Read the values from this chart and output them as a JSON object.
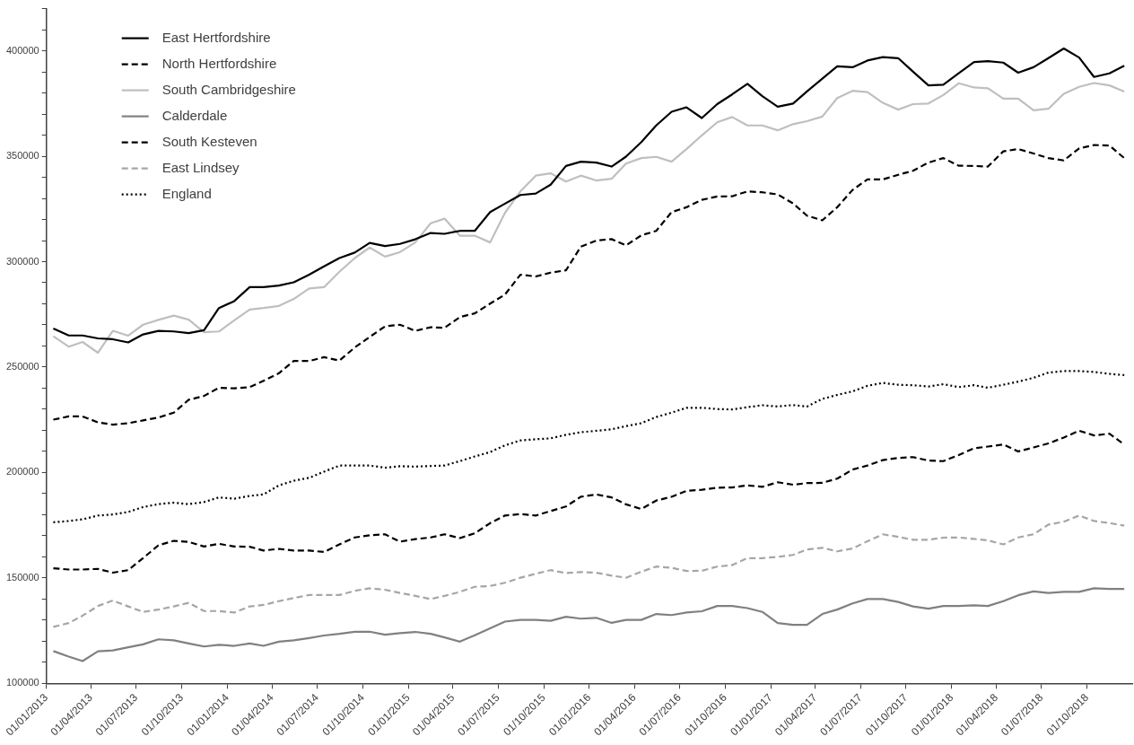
{
  "chart_data": {
    "type": "line",
    "legend": "top left",
    "grid": false,
    "marker": "none",
    "x": [
      "2013-01-15",
      "2013-02-15",
      "2013-03-15",
      "2013-04-15",
      "2013-05-15",
      "2013-06-15",
      "2013-07-15",
      "2013-08-15",
      "2013-09-15",
      "2013-10-15",
      "2013-11-15",
      "2013-12-15",
      "2014-01-15",
      "2014-02-15",
      "2014-03-15",
      "2014-04-15",
      "2014-05-15",
      "2014-06-15",
      "2014-07-15",
      "2014-08-15",
      "2014-09-15",
      "2014-10-15",
      "2014-11-15",
      "2014-12-15",
      "2015-01-15",
      "2015-02-15",
      "2015-03-15",
      "2015-04-15",
      "2015-05-15",
      "2015-06-15",
      "2015-07-15",
      "2015-08-15",
      "2015-09-15",
      "2015-10-15",
      "2015-11-15",
      "2015-12-15",
      "2016-01-15",
      "2016-02-15",
      "2016-03-15",
      "2016-04-15",
      "2016-05-15",
      "2016-06-15",
      "2016-07-15",
      "2016-08-15",
      "2016-09-15",
      "2016-10-15",
      "2016-11-15",
      "2016-12-15",
      "2017-01-15",
      "2017-02-15",
      "2017-03-15",
      "2017-04-15",
      "2017-05-15",
      "2017-06-15",
      "2017-07-15",
      "2017-08-15",
      "2017-09-15",
      "2017-10-15",
      "2017-11-15",
      "2017-12-15",
      "2018-01-15",
      "2018-02-15",
      "2018-03-15",
      "2018-04-15",
      "2018-05-15",
      "2018-06-15",
      "2018-07-15",
      "2018-08-15",
      "2018-09-15",
      "2018-10-15",
      "2018-11-15",
      "2018-12-15"
    ],
    "series": [
      {
        "name": "East Hertfordshire",
        "color": "#000000",
        "line_style": "solid",
        "values": [
          268300,
          265000,
          265000,
          263600,
          263200,
          261700,
          265500,
          267200,
          266900,
          266100,
          267500,
          278000,
          281300,
          287900,
          287900,
          288700,
          290200,
          293800,
          297800,
          301700,
          304300,
          308900,
          307400,
          308400,
          310600,
          313600,
          313200,
          314600,
          314600,
          323500,
          327500,
          331600,
          332300,
          336500,
          345400,
          347400,
          347000,
          345100,
          349800,
          356700,
          364600,
          371100,
          373200,
          368100,
          374700,
          379300,
          384300,
          378500,
          373500,
          375000,
          380700,
          386800,
          392600,
          392200,
          395400,
          397000,
          396500,
          390100,
          383600,
          383900,
          389300,
          394700,
          395100,
          394400,
          389600,
          392200,
          396500,
          401100,
          396800,
          387600,
          389300,
          392900
        ]
      },
      {
        "name": "North Hertfordshire",
        "color": "#000000",
        "line_style": "dashed",
        "values": [
          225100,
          226600,
          226600,
          223800,
          222700,
          223400,
          224700,
          226100,
          228400,
          234500,
          236300,
          240200,
          239900,
          240500,
          243500,
          247100,
          252900,
          252900,
          254700,
          253100,
          259300,
          264300,
          269300,
          270100,
          267200,
          268900,
          268600,
          273700,
          275500,
          280100,
          284400,
          293800,
          293000,
          294800,
          295900,
          307100,
          310000,
          310700,
          307700,
          312500,
          314600,
          323500,
          325800,
          329300,
          330900,
          331000,
          333300,
          332900,
          331900,
          327600,
          321800,
          319600,
          325800,
          334000,
          339000,
          339000,
          341200,
          343100,
          347000,
          349100,
          345500,
          345400,
          345100,
          352300,
          353400,
          351300,
          349100,
          348000,
          353700,
          355300,
          355100,
          349100
        ]
      },
      {
        "name": "South Cambridgeshire",
        "color": "#bfbfbf",
        "line_style": "solid",
        "values": [
          264600,
          259700,
          261900,
          256800,
          267200,
          264900,
          270100,
          272400,
          274400,
          272500,
          266500,
          266900,
          272200,
          277300,
          278000,
          279000,
          282300,
          287300,
          287900,
          295200,
          301700,
          306700,
          302400,
          304500,
          309100,
          318200,
          320400,
          312300,
          312300,
          309100,
          323200,
          333300,
          340800,
          341900,
          338000,
          340800,
          338500,
          339300,
          346500,
          349100,
          349700,
          347400,
          353400,
          359900,
          366100,
          368600,
          364600,
          364600,
          362300,
          365200,
          366600,
          368800,
          377600,
          381000,
          380400,
          375300,
          372100,
          374700,
          375000,
          379000,
          384600,
          382600,
          382200,
          377300,
          377300,
          371800,
          372500,
          379600,
          382900,
          384700,
          383600,
          380700
        ]
      },
      {
        "name": "Calderdale",
        "color": "#808080",
        "line_style": "solid",
        "values": [
          115300,
          112700,
          110600,
          115200,
          115600,
          117100,
          118500,
          120900,
          120400,
          118900,
          117500,
          118300,
          117800,
          118900,
          117800,
          119800,
          120400,
          121500,
          122700,
          123500,
          124500,
          124500,
          123100,
          123800,
          124400,
          123500,
          121800,
          119800,
          122800,
          126100,
          129300,
          130100,
          130100,
          129700,
          131600,
          130700,
          131100,
          128700,
          130100,
          130100,
          132900,
          132400,
          133600,
          134200,
          136700,
          136700,
          135700,
          133900,
          128600,
          127800,
          127800,
          132900,
          135000,
          137900,
          140000,
          140000,
          138600,
          136500,
          135400,
          136700,
          136700,
          137000,
          136700,
          139000,
          141800,
          143600,
          142900,
          143400,
          143400,
          145100,
          144800,
          144800
        ]
      },
      {
        "name": "South Kesteven",
        "color": "#000000",
        "line_style": "dashed",
        "values": [
          154600,
          154000,
          154000,
          154300,
          152500,
          153700,
          159400,
          165500,
          167600,
          167100,
          164900,
          166200,
          164900,
          164800,
          163000,
          163800,
          163000,
          163000,
          162300,
          165900,
          169200,
          170200,
          170700,
          167200,
          168400,
          169200,
          170700,
          168900,
          171200,
          176000,
          179600,
          180300,
          179600,
          181700,
          183900,
          188500,
          189600,
          188200,
          184900,
          182700,
          186700,
          188500,
          191300,
          191800,
          192800,
          192900,
          193900,
          193200,
          195400,
          194200,
          195000,
          195100,
          197100,
          201400,
          203300,
          205900,
          206900,
          207300,
          205700,
          205400,
          208300,
          211500,
          212300,
          213300,
          210000,
          211900,
          213800,
          216600,
          219800,
          217600,
          218400,
          213300
        ]
      },
      {
        "name": "East Lindsey",
        "color": "#a6a6a6",
        "line_style": "dashed",
        "values": [
          126800,
          128600,
          132100,
          136700,
          139300,
          136500,
          133900,
          135000,
          136500,
          138200,
          134300,
          134300,
          133600,
          136500,
          137200,
          139000,
          140500,
          141900,
          141900,
          141900,
          143900,
          145100,
          144400,
          142900,
          141500,
          140000,
          141500,
          143400,
          145800,
          146200,
          147700,
          150100,
          152000,
          153700,
          152300,
          152800,
          152500,
          151100,
          150100,
          153000,
          155400,
          154800,
          153300,
          153400,
          155400,
          156100,
          159400,
          159400,
          160000,
          160900,
          163500,
          164300,
          162600,
          164000,
          167400,
          170700,
          169500,
          168100,
          168100,
          169100,
          169200,
          168500,
          167800,
          165900,
          169200,
          170700,
          175300,
          176700,
          179600,
          177000,
          176000,
          174800
        ]
      },
      {
        "name": "England",
        "color": "#000000",
        "line_style": "dotted",
        "values": [
          176400,
          177000,
          177800,
          179600,
          180100,
          181300,
          183600,
          185000,
          185700,
          185000,
          186000,
          188200,
          187600,
          188900,
          189600,
          193900,
          196100,
          197500,
          200400,
          203300,
          203300,
          203300,
          202300,
          203000,
          202800,
          203100,
          203300,
          205400,
          207600,
          209700,
          212900,
          215200,
          215800,
          216200,
          217900,
          219100,
          219800,
          220500,
          222000,
          223400,
          226300,
          228400,
          230700,
          230700,
          230100,
          229900,
          231000,
          231900,
          231300,
          232000,
          231300,
          234900,
          236800,
          238500,
          241100,
          242500,
          241600,
          241400,
          240800,
          241900,
          240500,
          241400,
          240200,
          241600,
          243100,
          244900,
          247400,
          248100,
          248100,
          247700,
          246800,
          246200
        ]
      }
    ],
    "xlim": [
      "2013-01-01",
      "2018-12-31"
    ],
    "xticks": [
      {
        "value": "2013-01-01",
        "label": "01/01/2013"
      },
      {
        "value": "2013-04-01",
        "label": "01/04/2013"
      },
      {
        "value": "2013-07-01",
        "label": "01/07/2013"
      },
      {
        "value": "2013-10-01",
        "label": "01/10/2013"
      },
      {
        "value": "2014-01-01",
        "label": "01/01/2014"
      },
      {
        "value": "2014-04-01",
        "label": "01/04/2014"
      },
      {
        "value": "2014-07-01",
        "label": "01/07/2014"
      },
      {
        "value": "2014-10-01",
        "label": "01/10/2014"
      },
      {
        "value": "2015-01-01",
        "label": "01/01/2015"
      },
      {
        "value": "2015-04-01",
        "label": "01/04/2015"
      },
      {
        "value": "2015-07-01",
        "label": "01/07/2015"
      },
      {
        "value": "2015-10-01",
        "label": "01/10/2015"
      },
      {
        "value": "2016-01-01",
        "label": "01/01/2016"
      },
      {
        "value": "2016-04-01",
        "label": "01/04/2016"
      },
      {
        "value": "2016-07-01",
        "label": "01/07/2016"
      },
      {
        "value": "2016-10-01",
        "label": "01/10/2016"
      },
      {
        "value": "2017-01-01",
        "label": "01/01/2017"
      },
      {
        "value": "2017-04-01",
        "label": "01/04/2017"
      },
      {
        "value": "2017-07-01",
        "label": "01/07/2017"
      },
      {
        "value": "2017-10-01",
        "label": "01/10/2017"
      },
      {
        "value": "2018-01-01",
        "label": "01/01/2018"
      },
      {
        "value": "2018-04-01",
        "label": "01/04/2018"
      },
      {
        "value": "2018-07-01",
        "label": "01/07/2018"
      },
      {
        "value": "2018-10-01",
        "label": "01/10/2018"
      }
    ],
    "ylim": [
      100000,
      420000
    ],
    "yticks": [
      100000,
      {
        "value": 110000,
        "label": null
      },
      {
        "value": 120000,
        "label": null
      },
      {
        "value": 130000,
        "label": null
      },
      {
        "value": 140000,
        "label": null
      },
      150000,
      {
        "value": 160000,
        "label": null
      },
      {
        "value": 170000,
        "label": null
      },
      {
        "value": 180000,
        "label": null
      },
      {
        "value": 190000,
        "label": null
      },
      200000,
      {
        "value": 210000,
        "label": null
      },
      {
        "value": 220000,
        "label": null
      },
      {
        "value": 230000,
        "label": null
      },
      {
        "value": 240000,
        "label": null
      },
      250000,
      {
        "value": 260000,
        "label": null
      },
      {
        "value": 270000,
        "label": null
      },
      {
        "value": 280000,
        "label": null
      },
      {
        "value": 290000,
        "label": null
      },
      300000,
      {
        "value": 310000,
        "label": null
      },
      {
        "value": 320000,
        "label": null
      },
      {
        "value": 330000,
        "label": null
      },
      {
        "value": 340000,
        "label": null
      },
      350000,
      {
        "value": 360000,
        "label": null
      },
      {
        "value": 370000,
        "label": null
      },
      {
        "value": 380000,
        "label": null
      },
      {
        "value": 390000,
        "label": null
      },
      400000,
      {
        "value": 410000,
        "label": null
      },
      {
        "value": 420000,
        "label": null
      }
    ]
  }
}
